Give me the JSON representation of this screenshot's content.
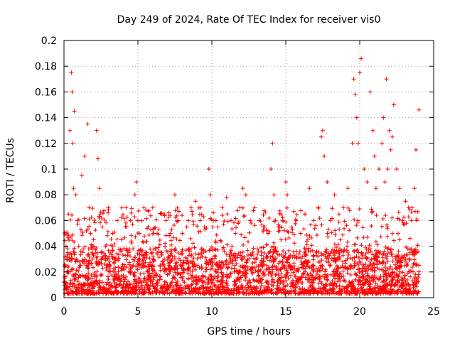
{
  "chart_data": {
    "type": "scatter",
    "title": "Day 249 of 2024, Rate Of TEC Index for receiver vis0",
    "xlabel": "GPS time / hours",
    "ylabel": "ROTI / TECUs",
    "xlim": [
      0,
      25
    ],
    "ylim": [
      0,
      0.2
    ],
    "xticks": [
      0,
      5,
      10,
      15,
      20,
      25
    ],
    "xtick_labels": [
      "0",
      "5",
      "10",
      "15",
      "20",
      "25"
    ],
    "yticks": [
      0,
      0.02,
      0.04,
      0.06,
      0.08,
      0.1,
      0.12,
      0.14,
      0.16,
      0.18,
      0.2
    ],
    "ytick_labels": [
      "0",
      "0.02",
      "0.04",
      "0.06",
      "0.08",
      "0.1",
      "0.12",
      "0.14",
      "0.16",
      "0.18",
      "0.2"
    ],
    "grid": true,
    "marker": "plus",
    "color": "#ff0000",
    "series": [
      {
        "x": [
          0.0,
          0.2,
          0.3,
          0.4,
          0.5,
          0.55,
          0.6,
          0.65,
          0.7,
          0.8,
          0.9,
          1.0,
          1.2,
          1.4,
          1.6,
          1.7,
          1.8,
          2.0,
          2.2,
          2.3,
          2.4,
          2.6,
          2.8,
          3.0,
          3.3,
          3.6,
          3.9,
          4.2,
          4.5,
          4.8,
          4.9,
          5.1,
          5.4,
          5.7,
          6.0,
          6.3,
          6.6,
          6.9,
          7.2,
          7.5,
          7.7,
          8.0,
          8.3,
          8.6,
          8.9,
          9.2,
          9.5,
          9.8,
          9.9,
          10.1,
          10.4,
          10.7,
          11.0,
          11.3,
          11.6,
          11.9,
          12.1,
          12.3,
          12.6,
          12.9,
          13.2,
          13.5,
          13.8,
          14.0,
          14.1,
          14.2,
          14.5,
          14.8,
          15.0,
          15.1,
          15.4,
          15.7,
          16.0,
          16.3,
          16.6,
          16.9,
          17.2,
          17.4,
          17.5,
          17.6,
          17.8,
          18.0,
          18.3,
          18.6,
          18.9,
          19.2,
          19.5,
          19.6,
          19.7,
          19.8,
          19.9,
          20.0,
          20.1,
          20.3,
          20.5,
          20.7,
          20.9,
          21.0,
          21.1,
          21.3,
          21.5,
          21.6,
          21.7,
          21.8,
          21.9,
          22.0,
          22.1,
          22.2,
          22.3,
          22.5,
          22.7,
          22.9,
          23.1,
          23.3,
          23.5,
          23.7,
          23.8,
          24.0
        ],
        "y": [
          0.012,
          0.03,
          0.065,
          0.13,
          0.175,
          0.16,
          0.12,
          0.085,
          0.145,
          0.08,
          0.06,
          0.04,
          0.095,
          0.11,
          0.135,
          0.07,
          0.05,
          0.045,
          0.13,
          0.108,
          0.085,
          0.055,
          0.04,
          0.07,
          0.05,
          0.06,
          0.045,
          0.07,
          0.06,
          0.08,
          0.09,
          0.05,
          0.07,
          0.055,
          0.07,
          0.05,
          0.065,
          0.06,
          0.05,
          0.08,
          0.06,
          0.05,
          0.055,
          0.07,
          0.075,
          0.06,
          0.055,
          0.1,
          0.08,
          0.06,
          0.055,
          0.07,
          0.078,
          0.06,
          0.05,
          0.07,
          0.085,
          0.08,
          0.06,
          0.07,
          0.06,
          0.055,
          0.05,
          0.1,
          0.12,
          0.08,
          0.055,
          0.06,
          0.09,
          0.08,
          0.055,
          0.06,
          0.05,
          0.065,
          0.085,
          0.06,
          0.07,
          0.125,
          0.13,
          0.11,
          0.09,
          0.06,
          0.08,
          0.065,
          0.07,
          0.085,
          0.12,
          0.17,
          0.158,
          0.14,
          0.12,
          0.175,
          0.186,
          0.1,
          0.09,
          0.16,
          0.13,
          0.11,
          0.085,
          0.1,
          0.12,
          0.14,
          0.09,
          0.17,
          0.1,
          0.13,
          0.115,
          0.125,
          0.15,
          0.1,
          0.085,
          0.06,
          0.075,
          0.07,
          0.06,
          0.085,
          0.115,
          0.146
        ]
      }
    ],
    "note_dense_floor": "dense band of values between 0.003 and 0.035 across 0–24 h"
  }
}
